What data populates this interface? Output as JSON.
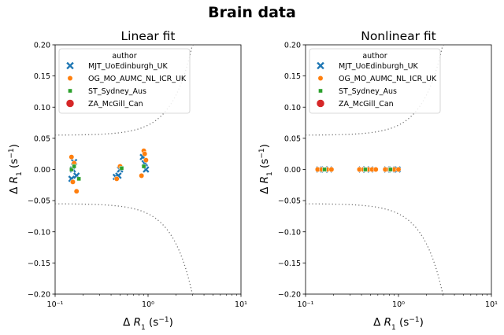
{
  "figure": {
    "title": "Brain data"
  },
  "chart_data": [
    {
      "type": "scatter",
      "title": "Linear fit",
      "xlabel": "Δ R1 (s⁻¹)",
      "ylabel": "Δ R1 (s⁻¹)",
      "xscale": "log",
      "xlim": [
        0.1,
        10
      ],
      "ylim": [
        -0.2,
        0.2
      ],
      "xticks": [
        "10⁻¹",
        "10⁰",
        "10¹"
      ],
      "yticks": [
        "−0.20",
        "−0.15",
        "−0.10",
        "−0.05",
        "0.00",
        "0.05",
        "0.10",
        "0.15",
        "0.20"
      ],
      "grid": false,
      "legend": {
        "title": "author",
        "placement": "top-left"
      },
      "series": [
        {
          "name": "MJT_UoEdinburgh_UK",
          "marker": "x",
          "color": "#1f77b4",
          "points": [
            [
              0.15,
              -0.015
            ],
            [
              0.16,
              0.012
            ],
            [
              0.17,
              -0.01
            ],
            [
              0.155,
              0.0
            ],
            [
              0.45,
              -0.012
            ],
            [
              0.5,
              0.0
            ],
            [
              0.48,
              -0.01
            ],
            [
              0.88,
              0.02
            ],
            [
              0.92,
              0.01
            ],
            [
              0.95,
              0.0
            ]
          ]
        },
        {
          "name": "OG_MO_AUMC_NL_ICR_UK",
          "marker": "o",
          "color": "#ff7f0e",
          "points": [
            [
              0.15,
              0.02
            ],
            [
              0.17,
              -0.035
            ],
            [
              0.16,
              0.01
            ],
            [
              0.155,
              -0.02
            ],
            [
              0.5,
              0.005
            ],
            [
              0.46,
              -0.015
            ],
            [
              0.9,
              0.03
            ],
            [
              0.95,
              0.015
            ],
            [
              0.85,
              -0.01
            ],
            [
              0.92,
              0.025
            ]
          ]
        },
        {
          "name": "ST_Sydney_Aus",
          "marker": "s",
          "color": "#2ca02c",
          "points": [
            [
              0.15,
              0.0
            ],
            [
              0.16,
              0.005
            ],
            [
              0.18,
              -0.015
            ],
            [
              0.52,
              0.002
            ],
            [
              0.9,
              0.005
            ]
          ]
        },
        {
          "name": "ZA_McGill_Can",
          "marker": "o",
          "color": "#d62728",
          "points": []
        }
      ]
    },
    {
      "type": "scatter",
      "title": "Nonlinear fit",
      "xlabel": "Δ R1 (s⁻¹)",
      "ylabel": "Δ R1 (s⁻¹)",
      "xscale": "log",
      "xlim": [
        0.1,
        10
      ],
      "ylim": [
        -0.2,
        0.2
      ],
      "xticks": [
        "10⁻¹",
        "10⁰",
        "10¹"
      ],
      "yticks": [
        "−0.20",
        "−0.15",
        "−0.10",
        "−0.05",
        "0.00",
        "0.05",
        "0.10",
        "0.15",
        "0.20"
      ],
      "grid": false,
      "legend": {
        "title": "author",
        "placement": "top-left"
      },
      "series": [
        {
          "name": "MJT_UoEdinburgh_UK",
          "marker": "x",
          "color": "#1f77b4",
          "points": [
            [
              0.14,
              0
            ],
            [
              0.16,
              0
            ],
            [
              0.18,
              0
            ],
            [
              0.4,
              0
            ],
            [
              0.45,
              0
            ],
            [
              0.5,
              0
            ],
            [
              0.75,
              0
            ],
            [
              0.85,
              0
            ],
            [
              0.98,
              0
            ]
          ]
        },
        {
          "name": "OG_MO_AUMC_NL_ICR_UK",
          "marker": "o",
          "color": "#ff7f0e",
          "points": [
            [
              0.135,
              0
            ],
            [
              0.15,
              0
            ],
            [
              0.17,
              0
            ],
            [
              0.19,
              0
            ],
            [
              0.38,
              0
            ],
            [
              0.42,
              0
            ],
            [
              0.47,
              0
            ],
            [
              0.52,
              0
            ],
            [
              0.57,
              0
            ],
            [
              0.72,
              0
            ],
            [
              0.8,
              0
            ],
            [
              0.9,
              0
            ],
            [
              1.0,
              0
            ]
          ]
        },
        {
          "name": "ST_Sydney_Aus",
          "marker": "s",
          "color": "#2ca02c",
          "points": [
            [
              0.16,
              0
            ],
            [
              0.44,
              0
            ],
            [
              0.82,
              0
            ]
          ]
        },
        {
          "name": "ZA_McGill_Can",
          "marker": "o",
          "color": "#d62728",
          "points": []
        }
      ]
    }
  ]
}
